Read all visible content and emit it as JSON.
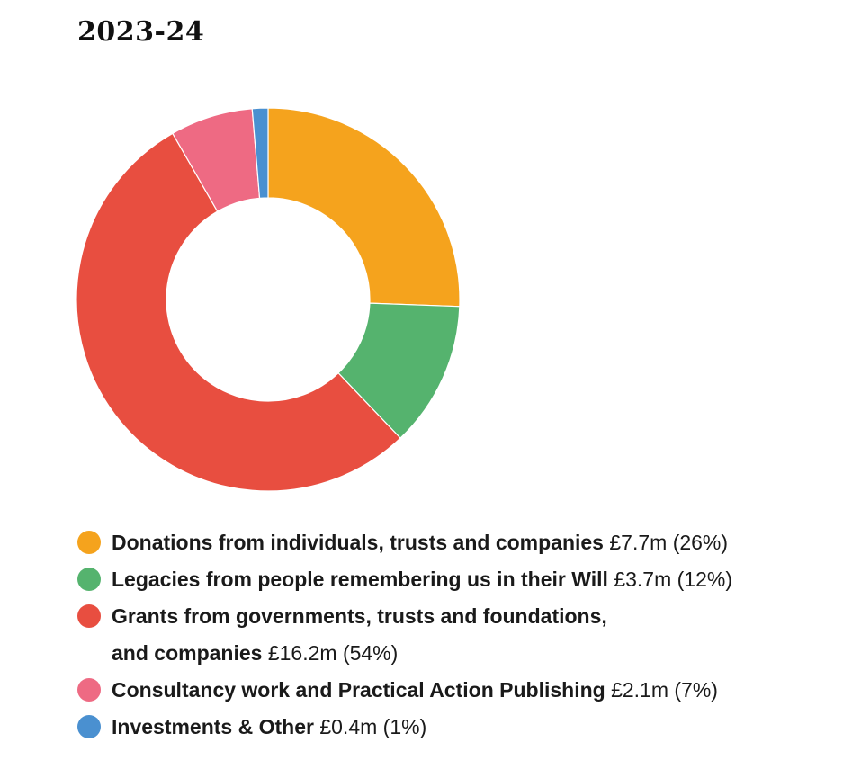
{
  "title": "2023-24",
  "chart_data": {
    "type": "pie",
    "title": "2023-24",
    "slices": [
      {
        "label": "Donations from individuals, trusts and companies",
        "amount": "£7.7m",
        "pct_text": "(26%)",
        "value": 7.7,
        "color": "#F5A31D"
      },
      {
        "label": "Legacies from people remembering us in their Will",
        "amount": "£3.7m",
        "pct_text": "(12%)",
        "value": 3.7,
        "color": "#55B36E"
      },
      {
        "label": "Grants from governments, trusts and foundations,",
        "label2": "and companies",
        "amount": "£16.2m",
        "pct_text": "(54%)",
        "value": 16.2,
        "color": "#E84E40"
      },
      {
        "label": "Consultancy work and Practical Action Publishing",
        "amount": "£2.1m",
        "pct_text": "(7%)",
        "value": 2.1,
        "color": "#EE6A83"
      },
      {
        "label": "Investments & Other",
        "amount": "£0.4m",
        "pct_text": "(1%)",
        "value": 0.4,
        "color": "#4A90D0"
      }
    ]
  }
}
